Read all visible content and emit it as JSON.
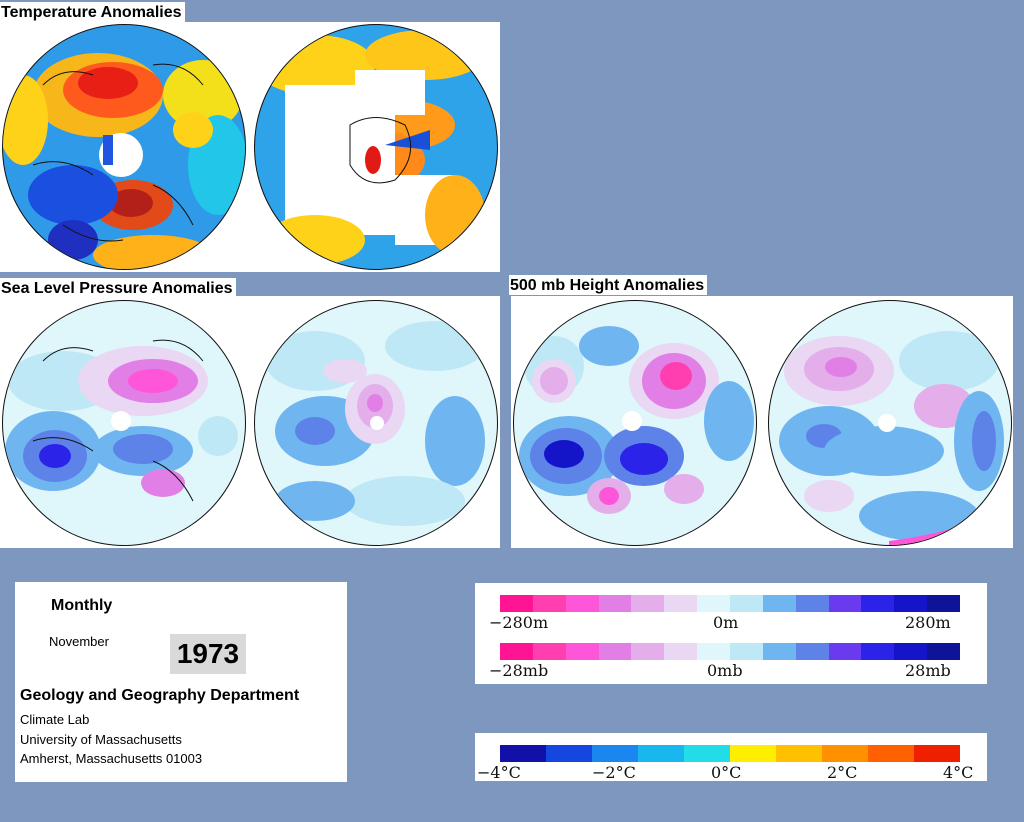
{
  "titles": {
    "temperature": "Temperature Anomalies",
    "slp": "Sea Level Pressure Anomalies",
    "height500": "500 mb Height Anomalies"
  },
  "info": {
    "period": "Monthly",
    "month": "November",
    "year": "1973",
    "department": "Geology and Geography Department",
    "lab": "Climate Lab",
    "university": "University of Massachusetts",
    "address": "Amherst, Massachusetts 01003"
  },
  "legends": {
    "height": {
      "min": "−280m",
      "mid": "0m",
      "max": "280m"
    },
    "pressure": {
      "min": "−28mb",
      "mid": "0mb",
      "max": "28mb"
    },
    "temperature": {
      "t1": "−4°C",
      "t2": "−2°C",
      "t3": "0°C",
      "t4": "2°C",
      "t5": "4°C"
    }
  },
  "colors": {
    "anomaly_scale": [
      "#ff1493",
      "#ff3fb0",
      "#ff55d8",
      "#e27fe6",
      "#e3aeea",
      "#e9d7f4",
      "#dff6fa",
      "#bfe8f6",
      "#6fb6f1",
      "#5e83e8",
      "#6a3aee",
      "#2b24e8",
      "#1414c8",
      "#0d1499"
    ],
    "temperature_scale": [
      "#1111aa",
      "#1547e0",
      "#1a86f0",
      "#18b7ee",
      "#22dce8",
      "#ffee00",
      "#ffc000",
      "#ff9000",
      "#ff6000",
      "#ee2000"
    ],
    "background": "#7d97bf"
  }
}
